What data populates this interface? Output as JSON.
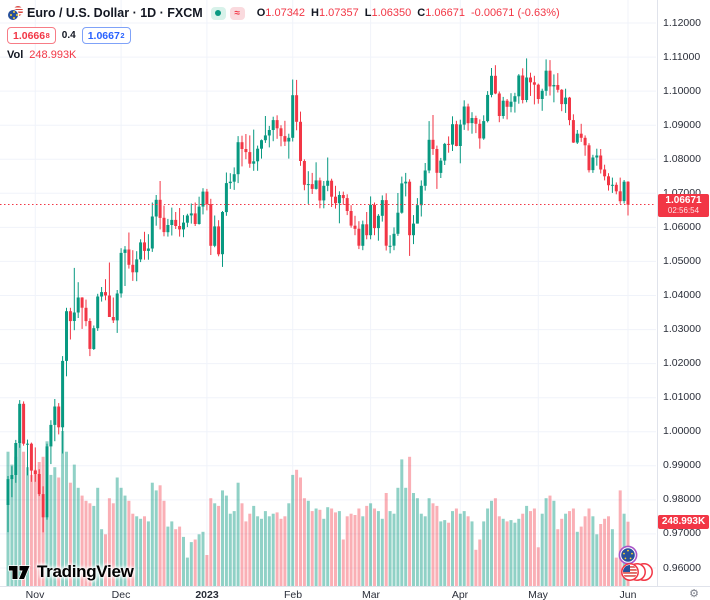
{
  "header": {
    "title": "Euro / U.S. Dollar · 1D · FXCM",
    "delay_glyph": "≈",
    "ohlc": {
      "o_label": "O",
      "o": "1.07342",
      "h_label": "H",
      "h": "1.07357",
      "l_label": "L",
      "l": "1.06350",
      "c_label": "C",
      "c": "1.06671",
      "change": "-0.00671 (-0.63%)"
    },
    "bid": "1.0666",
    "bid_sup": "8",
    "spread": "0.4",
    "ask": "1.0667",
    "ask_sup": "2",
    "vol_label": "Vol",
    "vol_value": "248.993K"
  },
  "axis": {
    "price_tag": "1.06671",
    "countdown": "02:56:54",
    "vol_tag": "248.993K"
  },
  "footer": {
    "brand": "TradingView"
  },
  "misc": {
    "gear_glyph": "⚙"
  },
  "colors": {
    "up": "#089981",
    "down": "#f23645",
    "vol_up": "rgba(8,153,129,0.45)",
    "vol_down": "rgba(242,54,69,0.40)",
    "grid": "#f0f3fa",
    "accent_blue": "#2962ff",
    "tag_red": "#f23645"
  },
  "chart_data": {
    "type": "candlestick",
    "title": "Euro / U.S. Dollar",
    "interval": "1D",
    "exchange": "FXCM",
    "last": {
      "open": 1.07342,
      "high": 1.07357,
      "low": 1.0635,
      "close": 1.06671,
      "change": -0.00671,
      "change_pct": -0.63,
      "volume": "248.993K"
    },
    "price_axis": {
      "min": 0.96,
      "max": 1.12,
      "step": 0.01
    },
    "y_ticks": [
      "1.12000",
      "1.11000",
      "1.10000",
      "1.09000",
      "1.08000",
      "1.07000",
      "1.06000",
      "1.05000",
      "1.04000",
      "1.03000",
      "1.02000",
      "1.01000",
      "1.00000",
      "0.99000",
      "0.98000",
      "0.97000",
      "0.96000"
    ],
    "x_ticks": [
      {
        "label": "Nov",
        "index": 7
      },
      {
        "label": "Dec",
        "index": 29
      },
      {
        "label": "2023",
        "index": 51,
        "bold": true
      },
      {
        "label": "Feb",
        "index": 73
      },
      {
        "label": "Mar",
        "index": 93
      },
      {
        "label": "Apr",
        "index": 116
      },
      {
        "label": "May",
        "index": 136
      },
      {
        "label": "Jun",
        "index": 159
      }
    ],
    "candles": [
      [
        0.9785,
        0.987,
        0.9705,
        0.9861,
        520
      ],
      [
        0.9861,
        0.9899,
        0.9808,
        0.9873,
        470
      ],
      [
        0.9873,
        0.9976,
        0.985,
        0.9967,
        500
      ],
      [
        0.9967,
        1.0093,
        0.9953,
        1.0082,
        560
      ],
      [
        1.0082,
        1.0089,
        0.9959,
        0.9965,
        520
      ],
      [
        0.9965,
        0.9977,
        0.9872,
        0.9965,
        460
      ],
      [
        0.9965,
        0.9968,
        0.9853,
        0.9886,
        430
      ],
      [
        0.9886,
        0.9954,
        0.9853,
        0.9876,
        450
      ],
      [
        0.9876,
        0.989,
        0.9811,
        0.9817,
        480
      ],
      [
        0.9817,
        0.984,
        0.9705,
        0.9749,
        500
      ],
      [
        0.9749,
        0.9965,
        0.9742,
        0.9957,
        560
      ],
      [
        0.9957,
        1.0034,
        0.9905,
        1.002,
        430
      ],
      [
        1.002,
        1.0096,
        0.9972,
        1.0074,
        460
      ],
      [
        1.0074,
        1.0084,
        0.9992,
        1.0013,
        420
      ],
      [
        1.0013,
        1.0222,
        0.9936,
        1.0208,
        600
      ],
      [
        1.0208,
        1.0364,
        1.0163,
        1.0354,
        520
      ],
      [
        1.0354,
        1.0364,
        1.0271,
        1.0325,
        400
      ],
      [
        1.0325,
        1.0481,
        1.0298,
        1.035,
        470
      ],
      [
        1.035,
        1.0439,
        1.0334,
        1.0394,
        380
      ],
      [
        1.0394,
        1.0395,
        1.0302,
        1.0364,
        350
      ],
      [
        1.0364,
        1.0388,
        1.031,
        1.0325,
        330
      ],
      [
        1.0325,
        1.0333,
        1.0222,
        1.0243,
        320
      ],
      [
        1.0243,
        1.0312,
        1.024,
        1.0304,
        310
      ],
      [
        1.0304,
        1.0405,
        1.0296,
        1.0397,
        380
      ],
      [
        1.0397,
        1.0425,
        1.0382,
        1.041,
        220
      ],
      [
        1.041,
        1.0448,
        1.0386,
        1.04,
        200
      ],
      [
        1.04,
        1.0497,
        1.034,
        1.0337,
        340
      ],
      [
        1.0337,
        1.0394,
        1.0319,
        1.0327,
        320
      ],
      [
        1.0327,
        1.0416,
        1.029,
        1.0406,
        420
      ],
      [
        1.0406,
        1.0539,
        1.0394,
        1.0525,
        380
      ],
      [
        1.0525,
        1.0545,
        1.0428,
        1.0535,
        350
      ],
      [
        1.0535,
        1.0585,
        1.0479,
        1.049,
        330
      ],
      [
        1.049,
        1.0533,
        1.0443,
        1.0468,
        280
      ],
      [
        1.0468,
        1.053,
        1.0442,
        1.0506,
        270
      ],
      [
        1.0506,
        1.0565,
        1.0498,
        1.0556,
        260
      ],
      [
        1.0556,
        1.0587,
        1.0505,
        1.0531,
        270
      ],
      [
        1.0531,
        1.058,
        1.0505,
        1.0538,
        250
      ],
      [
        1.0538,
        1.0673,
        1.0528,
        1.0632,
        400
      ],
      [
        1.0632,
        1.0695,
        1.0605,
        1.0681,
        370
      ],
      [
        1.0681,
        1.0736,
        1.0594,
        1.0628,
        390
      ],
      [
        1.0628,
        1.0664,
        1.0574,
        1.0586,
        330
      ],
      [
        1.0586,
        1.0625,
        1.0573,
        1.0607,
        230
      ],
      [
        1.0607,
        1.0658,
        1.0576,
        1.0622,
        250
      ],
      [
        1.0622,
        1.0645,
        1.0595,
        1.0604,
        220
      ],
      [
        1.0604,
        1.0657,
        1.0573,
        1.0594,
        230
      ],
      [
        1.0594,
        1.0636,
        1.0571,
        1.0614,
        190
      ],
      [
        1.0614,
        1.064,
        1.0601,
        1.0635,
        110
      ],
      [
        1.0635,
        1.067,
        1.0611,
        1.0641,
        170
      ],
      [
        1.0641,
        1.0673,
        1.0604,
        1.061,
        180
      ],
      [
        1.061,
        1.069,
        1.0608,
        1.0661,
        200
      ],
      [
        1.0661,
        1.0715,
        1.0638,
        1.0705,
        210
      ],
      [
        1.0705,
        1.0713,
        1.065,
        1.0668,
        120
      ],
      [
        1.0668,
        1.0684,
        1.0519,
        1.0546,
        340
      ],
      [
        1.0546,
        1.0635,
        1.0542,
        1.0603,
        320
      ],
      [
        1.0603,
        1.0621,
        1.0515,
        1.0521,
        310
      ],
      [
        1.0521,
        1.0648,
        1.0484,
        1.0645,
        370
      ],
      [
        1.0645,
        1.0761,
        1.0634,
        1.073,
        350
      ],
      [
        1.073,
        1.0759,
        1.0713,
        1.0734,
        280
      ],
      [
        1.0734,
        1.0776,
        1.071,
        1.0756,
        290
      ],
      [
        1.0756,
        1.0868,
        1.073,
        1.085,
        400
      ],
      [
        1.085,
        1.0869,
        1.0779,
        1.083,
        320
      ],
      [
        1.083,
        1.0874,
        1.08,
        1.0821,
        250
      ],
      [
        1.0821,
        1.087,
        1.0775,
        1.0787,
        280
      ],
      [
        1.0787,
        1.0887,
        1.0766,
        1.0794,
        310
      ],
      [
        1.0794,
        1.084,
        1.0766,
        1.0831,
        270
      ],
      [
        1.0831,
        1.0858,
        1.0802,
        1.0856,
        260
      ],
      [
        1.0856,
        1.0927,
        1.0848,
        1.087,
        290
      ],
      [
        1.087,
        1.0898,
        1.0835,
        1.0886,
        270
      ],
      [
        1.0886,
        1.0925,
        1.0853,
        1.0915,
        280
      ],
      [
        1.0915,
        1.0929,
        1.086,
        1.0891,
        285
      ],
      [
        1.0891,
        1.09,
        1.0838,
        1.0868,
        260
      ],
      [
        1.0868,
        1.0913,
        1.0839,
        1.0852,
        270
      ],
      [
        1.0852,
        1.0875,
        1.0802,
        1.0863,
        320
      ],
      [
        1.0863,
        1.1034,
        1.0852,
        1.0988,
        430
      ],
      [
        1.0988,
        1.1033,
        1.0885,
        1.091,
        450
      ],
      [
        1.091,
        1.094,
        1.0781,
        1.0795,
        420
      ],
      [
        1.0795,
        1.08,
        1.0709,
        1.0725,
        340
      ],
      [
        1.0725,
        1.0765,
        1.0669,
        1.0727,
        330
      ],
      [
        1.0727,
        1.076,
        1.0698,
        1.0713,
        290
      ],
      [
        1.0713,
        1.0791,
        1.0711,
        1.0738,
        300
      ],
      [
        1.0738,
        1.0746,
        1.0656,
        1.0679,
        295
      ],
      [
        1.0679,
        1.0736,
        1.0656,
        1.0722,
        260
      ],
      [
        1.0722,
        1.0805,
        1.0706,
        1.0737,
        305
      ],
      [
        1.0737,
        1.0743,
        1.066,
        1.069,
        300
      ],
      [
        1.069,
        1.0722,
        1.0655,
        1.0671,
        285
      ],
      [
        1.0671,
        1.0706,
        1.0612,
        1.0695,
        290
      ],
      [
        1.0695,
        1.0705,
        1.0666,
        1.0686,
        180
      ],
      [
        1.0686,
        1.0697,
        1.0636,
        1.0648,
        270
      ],
      [
        1.0648,
        1.0665,
        1.0599,
        1.0605,
        280
      ],
      [
        1.0605,
        1.0634,
        1.0577,
        1.0596,
        275
      ],
      [
        1.0596,
        1.0618,
        1.0536,
        1.0546,
        300
      ],
      [
        1.0546,
        1.062,
        1.0533,
        1.0609,
        270
      ],
      [
        1.0609,
        1.0645,
        1.0565,
        1.0577,
        310
      ],
      [
        1.0577,
        1.0691,
        1.0565,
        1.0666,
        320
      ],
      [
        1.0666,
        1.0673,
        1.0577,
        1.0598,
        300
      ],
      [
        1.0598,
        1.0639,
        1.0561,
        1.0634,
        290
      ],
      [
        1.0634,
        1.0694,
        1.0617,
        1.068,
        260
      ],
      [
        1.068,
        1.07,
        1.0532,
        1.0546,
        360
      ],
      [
        1.0546,
        1.0577,
        1.0524,
        1.0546,
        290
      ],
      [
        1.0546,
        1.06,
        1.0533,
        1.0581,
        280
      ],
      [
        1.0581,
        1.0701,
        1.0575,
        1.0643,
        380
      ],
      [
        1.0643,
        1.0749,
        1.064,
        1.0729,
        490
      ],
      [
        1.0729,
        1.076,
        1.0691,
        1.0734,
        380
      ],
      [
        1.0734,
        1.0741,
        1.0516,
        1.0577,
        500
      ],
      [
        1.0577,
        1.0636,
        1.0551,
        1.0611,
        360
      ],
      [
        1.0611,
        1.0686,
        1.0611,
        1.0665,
        340
      ],
      [
        1.0665,
        1.0738,
        1.0632,
        1.0722,
        280
      ],
      [
        1.0722,
        1.0789,
        1.0708,
        1.0767,
        270
      ],
      [
        1.0767,
        1.0912,
        1.0759,
        1.0857,
        340
      ],
      [
        1.0857,
        1.093,
        1.0813,
        1.083,
        320
      ],
      [
        1.083,
        1.084,
        1.0713,
        1.076,
        310
      ],
      [
        1.076,
        1.0804,
        1.0745,
        1.0796,
        250
      ],
      [
        1.0796,
        1.0848,
        1.0783,
        1.0845,
        255
      ],
      [
        1.0845,
        1.0867,
        1.0819,
        1.0843,
        245
      ],
      [
        1.0843,
        1.0926,
        1.0824,
        1.0903,
        290
      ],
      [
        1.0903,
        1.0913,
        1.0838,
        1.0839,
        300
      ],
      [
        1.0839,
        1.0916,
        1.0788,
        1.0902,
        280
      ],
      [
        1.0902,
        1.0973,
        1.0886,
        1.0955,
        290
      ],
      [
        1.0955,
        1.0963,
        1.0884,
        1.0906,
        270
      ],
      [
        1.0906,
        1.0938,
        1.0875,
        1.0921,
        250
      ],
      [
        1.0921,
        1.0928,
        1.0877,
        1.0904,
        140
      ],
      [
        1.0904,
        1.0917,
        1.0831,
        1.0861,
        180
      ],
      [
        1.0861,
        1.0929,
        1.0857,
        1.0912,
        250
      ],
      [
        1.0912,
        1.1,
        1.0908,
        1.0989,
        300
      ],
      [
        1.0989,
        1.1068,
        1.0982,
        1.1045,
        330
      ],
      [
        1.1045,
        1.1076,
        1.0991,
        1.0993,
        340
      ],
      [
        1.0993,
        1.0999,
        1.0909,
        1.0927,
        270
      ],
      [
        1.0927,
        1.0983,
        1.0919,
        1.0972,
        260
      ],
      [
        1.0972,
        1.0977,
        1.0917,
        1.0954,
        250
      ],
      [
        1.0954,
        1.0994,
        1.0938,
        1.0969,
        255
      ],
      [
        1.0969,
        1.0995,
        1.0937,
        1.0985,
        245
      ],
      [
        1.0985,
        1.105,
        1.0963,
        1.1046,
        260
      ],
      [
        1.1046,
        1.1067,
        1.0964,
        1.0974,
        280
      ],
      [
        1.0974,
        1.1096,
        1.0967,
        1.104,
        310
      ],
      [
        1.104,
        1.1054,
        1.0986,
        1.1026,
        290
      ],
      [
        1.1026,
        1.1045,
        1.0961,
        1.1019,
        300
      ],
      [
        1.1019,
        1.1022,
        1.0963,
        1.0977,
        150
      ],
      [
        1.0977,
        1.1007,
        1.0942,
        1.1001,
        280
      ],
      [
        1.1001,
        1.1093,
        1.0986,
        1.106,
        340
      ],
      [
        1.106,
        1.1091,
        1.0987,
        1.1014,
        350
      ],
      [
        1.1014,
        1.1049,
        1.0967,
        1.1018,
        330
      ],
      [
        1.1018,
        1.1053,
        1.0996,
        1.1004,
        220
      ],
      [
        1.1004,
        1.1006,
        1.0941,
        1.0962,
        260
      ],
      [
        1.0962,
        1.1007,
        1.0936,
        1.0981,
        280
      ],
      [
        1.0981,
        1.0983,
        1.09,
        1.0915,
        290
      ],
      [
        1.0915,
        1.0932,
        1.0848,
        1.0849,
        300
      ],
      [
        1.0849,
        1.0886,
        1.0845,
        1.0875,
        210
      ],
      [
        1.0875,
        1.0904,
        1.0851,
        1.0863,
        230
      ],
      [
        1.0863,
        1.087,
        1.081,
        1.0841,
        270
      ],
      [
        1.0841,
        1.0847,
        1.0761,
        1.0768,
        300
      ],
      [
        1.0768,
        1.0813,
        1.076,
        1.0805,
        270
      ],
      [
        1.0805,
        1.0831,
        1.0781,
        1.0811,
        200
      ],
      [
        1.0811,
        1.083,
        1.0758,
        1.077,
        240
      ],
      [
        1.077,
        1.0784,
        1.0738,
        1.075,
        260
      ],
      [
        1.075,
        1.0759,
        1.0708,
        1.0724,
        270
      ],
      [
        1.0724,
        1.0746,
        1.0701,
        1.0725,
        220
      ],
      [
        1.0725,
        1.0732,
        1.0697,
        1.0706,
        110
      ],
      [
        1.0706,
        1.0746,
        1.0669,
        1.0677,
        370
      ],
      [
        1.0677,
        1.0739,
        1.067,
        1.0734,
        280
      ],
      [
        1.07342,
        1.07357,
        1.0635,
        1.06671,
        249
      ]
    ]
  }
}
